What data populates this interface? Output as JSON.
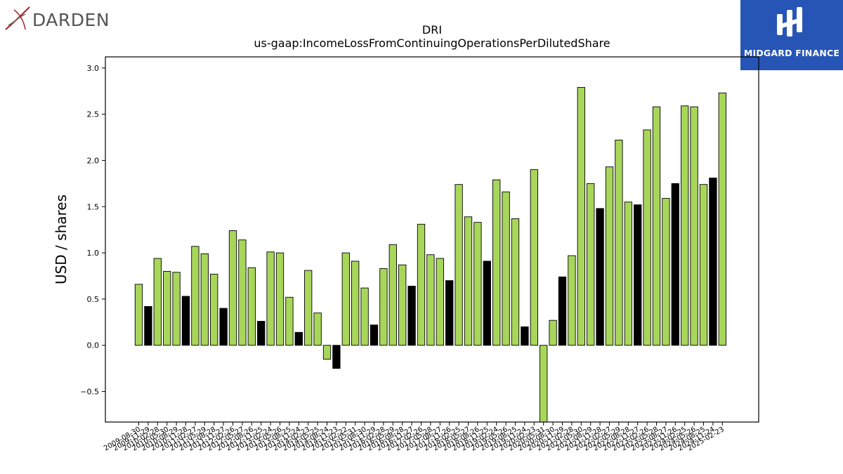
{
  "ticker": "DRI",
  "metric": "us-gaap:IncomeLossFromContinuingOperationsPerDilutedShare",
  "brand_left": "DARDEN",
  "brand_right": "MIDGARD FINANCE",
  "colors": {
    "annual": "#a8d65b",
    "quarterly": "#000000",
    "accent": "#2655b6"
  },
  "chart_data": {
    "type": "bar",
    "title": "DRI",
    "subtitle": "us-gaap:IncomeLossFromContinuingOperationsPerDilutedShare",
    "xlabel": "",
    "ylabel": "USD / shares",
    "ylim": [
      -0.83,
      3.12
    ],
    "yticks": [
      -0.5,
      0.0,
      0.5,
      1.0,
      1.5,
      2.0,
      2.5,
      3.0
    ],
    "ytick_labels": [
      "−0.5",
      "0.0",
      "0.5",
      "1.0",
      "1.5",
      "2.0",
      "2.5",
      "3.0"
    ],
    "grid": false,
    "x": [
      "2009-08-30",
      "2009-11-29",
      "2010-02-28",
      "2010-05-30",
      "2010-08-29",
      "2010-11-28",
      "2011-02-27",
      "2011-05-29",
      "2011-08-28",
      "2011-11-27",
      "2012-02-26",
      "2012-05-27",
      "2012-08-26",
      "2012-11-25",
      "2013-02-24",
      "2013-05-26",
      "2013-08-25",
      "2013-11-24",
      "2014-02-23",
      "2014-05-25",
      "2014-08-24",
      "2014-11-23",
      "2015-02-22",
      "2015-05-31",
      "2015-08-30",
      "2015-11-29",
      "2016-02-28",
      "2016-05-29",
      "2016-08-28",
      "2016-11-27",
      "2017-02-26",
      "2017-05-28",
      "2017-08-27",
      "2017-11-26",
      "2018-02-25",
      "2018-05-27",
      "2018-08-26",
      "2018-11-25",
      "2019-02-24",
      "2019-05-26",
      "2019-08-25",
      "2019-11-24",
      "2020-02-23",
      "2020-05-31",
      "2020-08-30",
      "2020-11-29",
      "2021-02-28",
      "2021-05-30",
      "2021-08-29",
      "2021-11-28",
      "2022-02-27",
      "2022-05-29",
      "2022-08-28",
      "2022-11-27",
      "2023-02-26",
      "2023-05-28",
      "2023-08-27",
      "2023-11-26",
      "2024-02-25",
      "2024-05-26",
      "2024-08-25",
      "2024-11-24",
      "2025-02-23"
    ],
    "x_labels_visible": [
      "2009-08-30",
      "2009-11-29",
      "2010-02-28",
      "2010-05-30",
      "2010-08-29",
      "2010-11-28",
      "2011-02-27",
      "2011-05-29",
      "2011-08-28",
      "2011-11-27",
      "2012-02-26",
      "2012-05-27",
      "2012-08-26",
      "2012-11-25",
      "2013-02-24",
      "2013-05-26",
      "2013-08-25",
      "2013-11-24",
      "2014-02-23",
      "2014-05-25",
      "2014-08-24",
      "2014-11-23",
      "2015-02-22",
      "2015-05-31",
      "2015-08-30",
      "2015-11-29",
      "2016-02-28",
      "2016-05-29",
      "2016-08-28",
      "2016-11-27",
      "2017-02-26",
      "2017-05-28",
      "2017-08-27",
      "2017-11-26",
      "2018-02-25",
      "2018-05-27",
      "2018-08-26",
      "2018-11-25",
      "2019-02-24",
      "2019-05-26",
      "2019-08-25",
      "2019-11-24",
      "2020-02-23",
      "2020-05-31",
      "2020-08-30",
      "2020-11-29",
      "2021-02-28",
      "2021-05-30",
      "2021-08-29",
      "2021-11-28",
      "2022-02-27",
      "2022-05-29",
      "2022-08-28",
      "2022-11-27",
      "2023-02-26",
      "2023-05-28",
      "2023-08-27",
      "2023-11-26",
      "2024-02-25",
      "2024-05-26",
      "2024-08-25",
      "2024-11-24",
      "2025-02-23"
    ],
    "values": [
      0.66,
      0.42,
      0.94,
      0.8,
      0.79,
      0.53,
      1.07,
      0.99,
      0.77,
      0.4,
      1.24,
      1.14,
      0.84,
      0.26,
      1.01,
      1.0,
      0.52,
      0.14,
      0.81,
      0.35,
      -0.15,
      -0.25,
      1.0,
      0.91,
      0.62,
      0.22,
      0.83,
      1.09,
      0.87,
      0.64,
      1.31,
      0.98,
      0.94,
      0.7,
      1.74,
      1.39,
      1.33,
      0.91,
      1.79,
      1.66,
      1.37,
      0.2,
      1.9,
      -0.95,
      0.27,
      0.74,
      0.97,
      2.79,
      1.75,
      1.48,
      1.93,
      2.22,
      1.55,
      1.52,
      2.33,
      2.58,
      1.59,
      1.75,
      2.59,
      2.58,
      1.74,
      1.81,
      2.73
    ],
    "highlight": [
      false,
      true,
      false,
      false,
      false,
      true,
      false,
      false,
      false,
      true,
      false,
      false,
      false,
      true,
      false,
      false,
      false,
      true,
      false,
      false,
      false,
      true,
      false,
      false,
      false,
      true,
      false,
      false,
      false,
      true,
      false,
      false,
      false,
      true,
      false,
      false,
      false,
      true,
      false,
      false,
      false,
      true,
      false,
      false,
      false,
      true,
      false,
      false,
      false,
      true,
      false,
      false,
      false,
      true,
      false,
      false,
      false,
      true,
      false,
      false,
      false,
      true,
      false
    ]
  }
}
